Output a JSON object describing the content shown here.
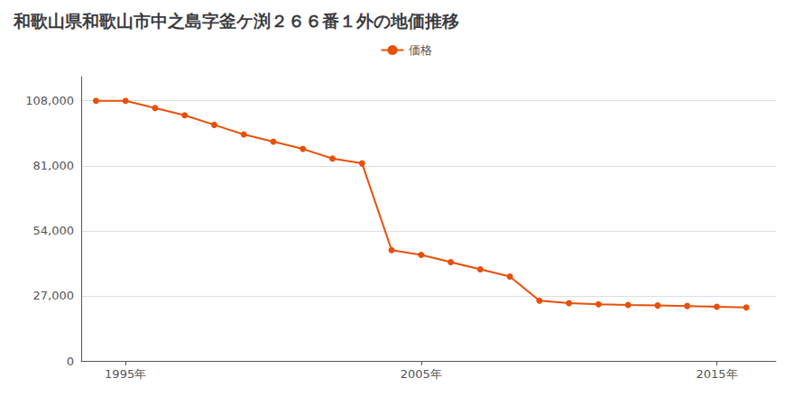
{
  "chart_data": {
    "type": "line",
    "title": "和歌山県和歌山市中之島字釜ケ渕２６６番１外の地価推移",
    "x": [
      1994,
      1995,
      1996,
      1997,
      1998,
      1999,
      2000,
      2001,
      2002,
      2003,
      2004,
      2005,
      2006,
      2007,
      2008,
      2009,
      2010,
      2011,
      2012,
      2013,
      2014,
      2015,
      2016
    ],
    "series": [
      {
        "name": "価格",
        "color": "#E8500A",
        "values": [
          108000,
          108000,
          105000,
          102000,
          98000,
          94000,
          91000,
          88000,
          84000,
          82000,
          46000,
          44000,
          41000,
          38000,
          35000,
          25000,
          24000,
          23500,
          23200,
          23000,
          22800,
          22500,
          22200
        ]
      }
    ],
    "xlim": [
      1993.5,
      2017
    ],
    "xticks": [
      {
        "value": 1995,
        "label": "1995年"
      },
      {
        "value": 2005,
        "label": "2005年"
      },
      {
        "value": 2015,
        "label": "2015年"
      }
    ],
    "ylim": [
      0,
      118000
    ],
    "yticks": [
      0,
      {
        "value": 27000,
        "label": "27,000"
      },
      {
        "value": 54000,
        "label": "54,000"
      },
      {
        "value": 81000,
        "label": "81,000"
      },
      {
        "value": 108000,
        "label": "108,000"
      }
    ],
    "grid": "y",
    "legend": "top",
    "marker": "circle"
  }
}
